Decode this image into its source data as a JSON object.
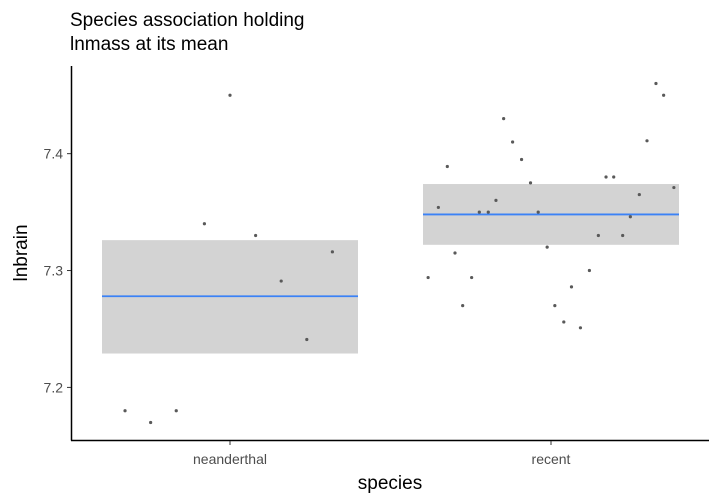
{
  "chart_data": {
    "type": "scatter",
    "title": [
      "Species association holding",
      "lnmass at its mean"
    ],
    "xlabel": "species",
    "ylabel": "lnbrain",
    "categories": [
      "neanderthal",
      "recent"
    ],
    "ylim": [
      7.155,
      7.475
    ],
    "yticks": [
      7.2,
      7.3,
      7.4
    ],
    "grid": false,
    "colors": {
      "points": "#595959",
      "band": "#d3d3d3",
      "line": "#3b82f6",
      "axis": "#000000"
    },
    "estimates": [
      {
        "category": "neanderthal",
        "mean": 7.278,
        "lower": 7.229,
        "upper": 7.326
      },
      {
        "category": "recent",
        "mean": 7.348,
        "lower": 7.322,
        "upper": 7.374
      }
    ],
    "points": [
      {
        "category": "neanderthal",
        "jitter": -0.82,
        "y": 7.18
      },
      {
        "category": "neanderthal",
        "jitter": -0.62,
        "y": 7.17
      },
      {
        "category": "neanderthal",
        "jitter": -0.42,
        "y": 7.18
      },
      {
        "category": "neanderthal",
        "jitter": -0.2,
        "y": 7.34
      },
      {
        "category": "neanderthal",
        "jitter": 0.0,
        "y": 7.45
      },
      {
        "category": "neanderthal",
        "jitter": 0.2,
        "y": 7.33
      },
      {
        "category": "neanderthal",
        "jitter": 0.4,
        "y": 7.291
      },
      {
        "category": "neanderthal",
        "jitter": 0.6,
        "y": 7.241
      },
      {
        "category": "neanderthal",
        "jitter": 0.8,
        "y": 7.316
      },
      {
        "category": "recent",
        "jitter": -0.96,
        "y": 7.294
      },
      {
        "category": "recent",
        "jitter": -0.88,
        "y": 7.354
      },
      {
        "category": "recent",
        "jitter": -0.81,
        "y": 7.389
      },
      {
        "category": "recent",
        "jitter": -0.75,
        "y": 7.315
      },
      {
        "category": "recent",
        "jitter": -0.69,
        "y": 7.27
      },
      {
        "category": "recent",
        "jitter": -0.62,
        "y": 7.294
      },
      {
        "category": "recent",
        "jitter": -0.56,
        "y": 7.35
      },
      {
        "category": "recent",
        "jitter": -0.49,
        "y": 7.35
      },
      {
        "category": "recent",
        "jitter": -0.43,
        "y": 7.36
      },
      {
        "category": "recent",
        "jitter": -0.37,
        "y": 7.43
      },
      {
        "category": "recent",
        "jitter": -0.3,
        "y": 7.41
      },
      {
        "category": "recent",
        "jitter": -0.23,
        "y": 7.395
      },
      {
        "category": "recent",
        "jitter": -0.16,
        "y": 7.375
      },
      {
        "category": "recent",
        "jitter": -0.1,
        "y": 7.35
      },
      {
        "category": "recent",
        "jitter": -0.03,
        "y": 7.32
      },
      {
        "category": "recent",
        "jitter": 0.03,
        "y": 7.27
      },
      {
        "category": "recent",
        "jitter": 0.1,
        "y": 7.256
      },
      {
        "category": "recent",
        "jitter": 0.16,
        "y": 7.286
      },
      {
        "category": "recent",
        "jitter": 0.23,
        "y": 7.251
      },
      {
        "category": "recent",
        "jitter": 0.3,
        "y": 7.3
      },
      {
        "category": "recent",
        "jitter": 0.37,
        "y": 7.33
      },
      {
        "category": "recent",
        "jitter": 0.43,
        "y": 7.38
      },
      {
        "category": "recent",
        "jitter": 0.49,
        "y": 7.38
      },
      {
        "category": "recent",
        "jitter": 0.56,
        "y": 7.33
      },
      {
        "category": "recent",
        "jitter": 0.62,
        "y": 7.346
      },
      {
        "category": "recent",
        "jitter": 0.69,
        "y": 7.365
      },
      {
        "category": "recent",
        "jitter": 0.75,
        "y": 7.411
      },
      {
        "category": "recent",
        "jitter": 0.82,
        "y": 7.46
      },
      {
        "category": "recent",
        "jitter": 0.88,
        "y": 7.45
      },
      {
        "category": "recent",
        "jitter": 0.96,
        "y": 7.371
      }
    ]
  }
}
